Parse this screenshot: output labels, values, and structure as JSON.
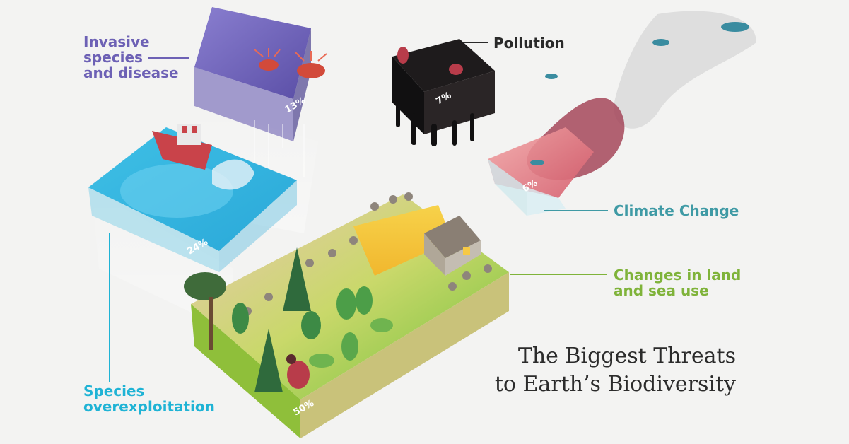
{
  "title": {
    "line1": "The Biggest Threats",
    "line2": "to Earth’s Biodiversity"
  },
  "colors": {
    "invasive": "#6d61b5",
    "pollution": "#2a2a2a",
    "climate": "#3f9aa5",
    "land": "#7fb33a",
    "overexploitation": "#1fb3d5"
  },
  "blocks": {
    "invasive": {
      "label_line1": "Invasive",
      "label_line2": "species",
      "label_line3": "and disease",
      "percent": "13%",
      "value": 13
    },
    "pollution": {
      "label": "Pollution",
      "percent": "7%",
      "value": 7
    },
    "climate": {
      "label": "Climate Change",
      "percent": "6%",
      "value": 6
    },
    "land": {
      "label_line1": "Changes in land",
      "label_line2": "and sea use",
      "percent": "50%",
      "value": 50
    },
    "overexploitation": {
      "label_line1": "Species",
      "label_line2": "overexploitation",
      "percent": "24%",
      "value": 24
    }
  }
}
